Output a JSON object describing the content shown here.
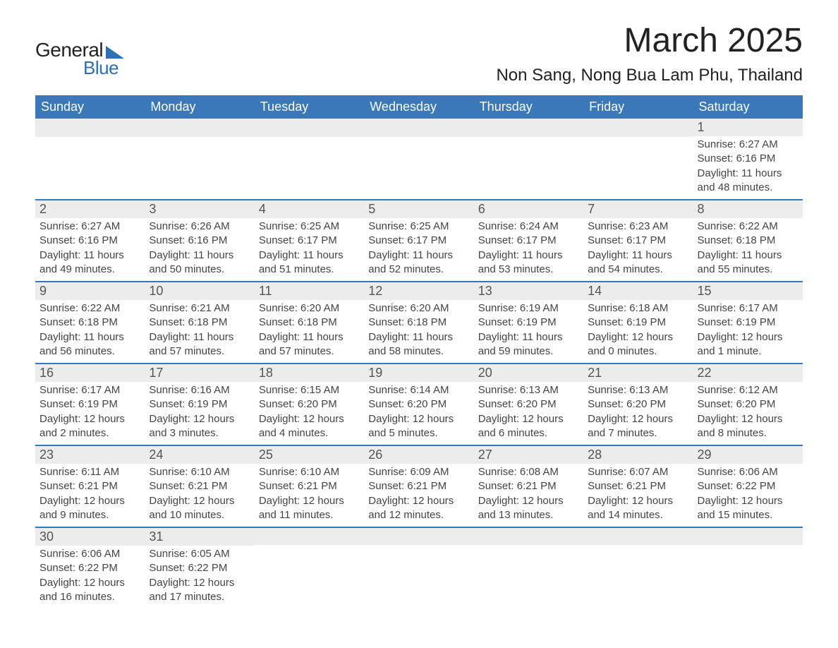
{
  "logo": {
    "text1": "General",
    "text2": "Blue"
  },
  "title": "March 2025",
  "location": "Non Sang, Nong Bua Lam Phu, Thailand",
  "weekdays": [
    "Sunday",
    "Monday",
    "Tuesday",
    "Wednesday",
    "Thursday",
    "Friday",
    "Saturday"
  ],
  "colors": {
    "header_bg": "#3a78b9",
    "header_text": "#ffffff",
    "daynum_bg": "#ececec",
    "row_border": "#3a78b9",
    "body_text": "#444444",
    "title_text": "#222222"
  },
  "weeks": [
    [
      {
        "day": "",
        "sunrise": "",
        "sunset": "",
        "daylight": ""
      },
      {
        "day": "",
        "sunrise": "",
        "sunset": "",
        "daylight": ""
      },
      {
        "day": "",
        "sunrise": "",
        "sunset": "",
        "daylight": ""
      },
      {
        "day": "",
        "sunrise": "",
        "sunset": "",
        "daylight": ""
      },
      {
        "day": "",
        "sunrise": "",
        "sunset": "",
        "daylight": ""
      },
      {
        "day": "",
        "sunrise": "",
        "sunset": "",
        "daylight": ""
      },
      {
        "day": "1",
        "sunrise": "Sunrise: 6:27 AM",
        "sunset": "Sunset: 6:16 PM",
        "daylight": "Daylight: 11 hours and 48 minutes."
      }
    ],
    [
      {
        "day": "2",
        "sunrise": "Sunrise: 6:27 AM",
        "sunset": "Sunset: 6:16 PM",
        "daylight": "Daylight: 11 hours and 49 minutes."
      },
      {
        "day": "3",
        "sunrise": "Sunrise: 6:26 AM",
        "sunset": "Sunset: 6:16 PM",
        "daylight": "Daylight: 11 hours and 50 minutes."
      },
      {
        "day": "4",
        "sunrise": "Sunrise: 6:25 AM",
        "sunset": "Sunset: 6:17 PM",
        "daylight": "Daylight: 11 hours and 51 minutes."
      },
      {
        "day": "5",
        "sunrise": "Sunrise: 6:25 AM",
        "sunset": "Sunset: 6:17 PM",
        "daylight": "Daylight: 11 hours and 52 minutes."
      },
      {
        "day": "6",
        "sunrise": "Sunrise: 6:24 AM",
        "sunset": "Sunset: 6:17 PM",
        "daylight": "Daylight: 11 hours and 53 minutes."
      },
      {
        "day": "7",
        "sunrise": "Sunrise: 6:23 AM",
        "sunset": "Sunset: 6:17 PM",
        "daylight": "Daylight: 11 hours and 54 minutes."
      },
      {
        "day": "8",
        "sunrise": "Sunrise: 6:22 AM",
        "sunset": "Sunset: 6:18 PM",
        "daylight": "Daylight: 11 hours and 55 minutes."
      }
    ],
    [
      {
        "day": "9",
        "sunrise": "Sunrise: 6:22 AM",
        "sunset": "Sunset: 6:18 PM",
        "daylight": "Daylight: 11 hours and 56 minutes."
      },
      {
        "day": "10",
        "sunrise": "Sunrise: 6:21 AM",
        "sunset": "Sunset: 6:18 PM",
        "daylight": "Daylight: 11 hours and 57 minutes."
      },
      {
        "day": "11",
        "sunrise": "Sunrise: 6:20 AM",
        "sunset": "Sunset: 6:18 PM",
        "daylight": "Daylight: 11 hours and 57 minutes."
      },
      {
        "day": "12",
        "sunrise": "Sunrise: 6:20 AM",
        "sunset": "Sunset: 6:18 PM",
        "daylight": "Daylight: 11 hours and 58 minutes."
      },
      {
        "day": "13",
        "sunrise": "Sunrise: 6:19 AM",
        "sunset": "Sunset: 6:19 PM",
        "daylight": "Daylight: 11 hours and 59 minutes."
      },
      {
        "day": "14",
        "sunrise": "Sunrise: 6:18 AM",
        "sunset": "Sunset: 6:19 PM",
        "daylight": "Daylight: 12 hours and 0 minutes."
      },
      {
        "day": "15",
        "sunrise": "Sunrise: 6:17 AM",
        "sunset": "Sunset: 6:19 PM",
        "daylight": "Daylight: 12 hours and 1 minute."
      }
    ],
    [
      {
        "day": "16",
        "sunrise": "Sunrise: 6:17 AM",
        "sunset": "Sunset: 6:19 PM",
        "daylight": "Daylight: 12 hours and 2 minutes."
      },
      {
        "day": "17",
        "sunrise": "Sunrise: 6:16 AM",
        "sunset": "Sunset: 6:19 PM",
        "daylight": "Daylight: 12 hours and 3 minutes."
      },
      {
        "day": "18",
        "sunrise": "Sunrise: 6:15 AM",
        "sunset": "Sunset: 6:20 PM",
        "daylight": "Daylight: 12 hours and 4 minutes."
      },
      {
        "day": "19",
        "sunrise": "Sunrise: 6:14 AM",
        "sunset": "Sunset: 6:20 PM",
        "daylight": "Daylight: 12 hours and 5 minutes."
      },
      {
        "day": "20",
        "sunrise": "Sunrise: 6:13 AM",
        "sunset": "Sunset: 6:20 PM",
        "daylight": "Daylight: 12 hours and 6 minutes."
      },
      {
        "day": "21",
        "sunrise": "Sunrise: 6:13 AM",
        "sunset": "Sunset: 6:20 PM",
        "daylight": "Daylight: 12 hours and 7 minutes."
      },
      {
        "day": "22",
        "sunrise": "Sunrise: 6:12 AM",
        "sunset": "Sunset: 6:20 PM",
        "daylight": "Daylight: 12 hours and 8 minutes."
      }
    ],
    [
      {
        "day": "23",
        "sunrise": "Sunrise: 6:11 AM",
        "sunset": "Sunset: 6:21 PM",
        "daylight": "Daylight: 12 hours and 9 minutes."
      },
      {
        "day": "24",
        "sunrise": "Sunrise: 6:10 AM",
        "sunset": "Sunset: 6:21 PM",
        "daylight": "Daylight: 12 hours and 10 minutes."
      },
      {
        "day": "25",
        "sunrise": "Sunrise: 6:10 AM",
        "sunset": "Sunset: 6:21 PM",
        "daylight": "Daylight: 12 hours and 11 minutes."
      },
      {
        "day": "26",
        "sunrise": "Sunrise: 6:09 AM",
        "sunset": "Sunset: 6:21 PM",
        "daylight": "Daylight: 12 hours and 12 minutes."
      },
      {
        "day": "27",
        "sunrise": "Sunrise: 6:08 AM",
        "sunset": "Sunset: 6:21 PM",
        "daylight": "Daylight: 12 hours and 13 minutes."
      },
      {
        "day": "28",
        "sunrise": "Sunrise: 6:07 AM",
        "sunset": "Sunset: 6:21 PM",
        "daylight": "Daylight: 12 hours and 14 minutes."
      },
      {
        "day": "29",
        "sunrise": "Sunrise: 6:06 AM",
        "sunset": "Sunset: 6:22 PM",
        "daylight": "Daylight: 12 hours and 15 minutes."
      }
    ],
    [
      {
        "day": "30",
        "sunrise": "Sunrise: 6:06 AM",
        "sunset": "Sunset: 6:22 PM",
        "daylight": "Daylight: 12 hours and 16 minutes."
      },
      {
        "day": "31",
        "sunrise": "Sunrise: 6:05 AM",
        "sunset": "Sunset: 6:22 PM",
        "daylight": "Daylight: 12 hours and 17 minutes."
      },
      {
        "day": "",
        "sunrise": "",
        "sunset": "",
        "daylight": ""
      },
      {
        "day": "",
        "sunrise": "",
        "sunset": "",
        "daylight": ""
      },
      {
        "day": "",
        "sunrise": "",
        "sunset": "",
        "daylight": ""
      },
      {
        "day": "",
        "sunrise": "",
        "sunset": "",
        "daylight": ""
      },
      {
        "day": "",
        "sunrise": "",
        "sunset": "",
        "daylight": ""
      }
    ]
  ]
}
